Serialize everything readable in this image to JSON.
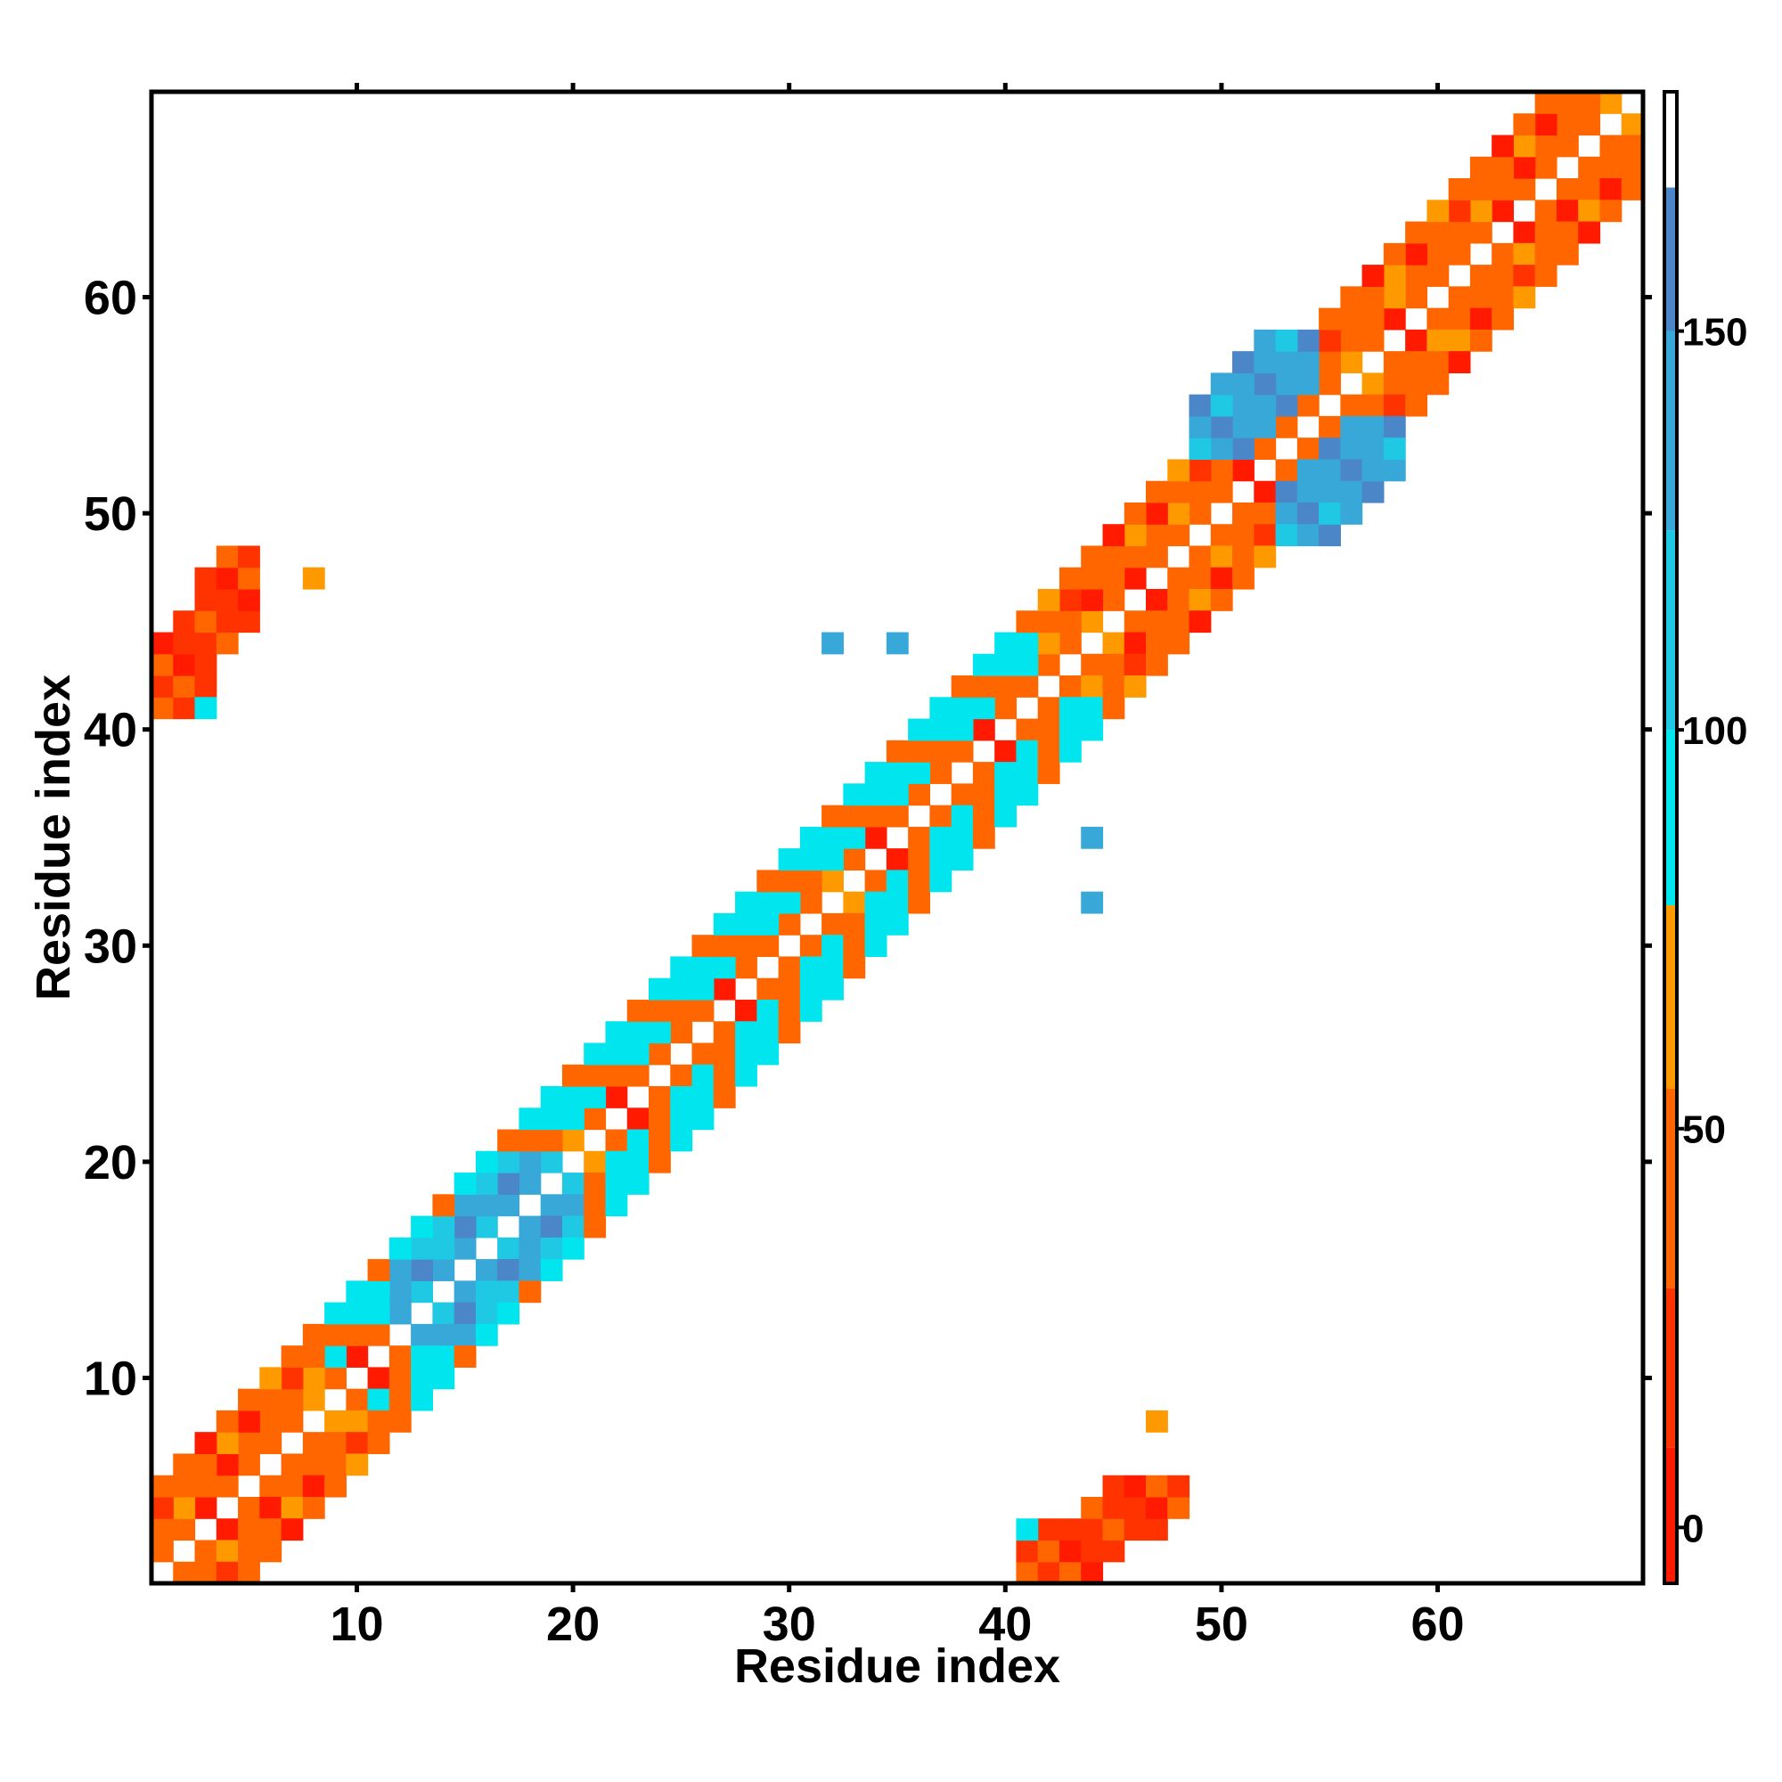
{
  "chart_data": {
    "type": "heatmap",
    "title": "",
    "xlabel": "Residue index",
    "ylabel": "Residue index",
    "xlim": [
      0.5,
      69.5
    ],
    "ylim": [
      0.5,
      69.5
    ],
    "x_ticks": [
      10,
      20,
      30,
      40,
      50,
      60
    ],
    "y_ticks": [
      10,
      20,
      30,
      40,
      50,
      60
    ],
    "x_tick_labels": [
      "10",
      "20",
      "30",
      "40",
      "50",
      "60"
    ],
    "y_tick_labels": [
      "10",
      "20",
      "30",
      "40",
      "50",
      "60"
    ],
    "grid": false,
    "legend": "colorbar right",
    "colorbar": {
      "range": [
        -7,
        180
      ],
      "ticks": [
        0,
        50,
        100,
        150
      ],
      "tick_labels": [
        "0",
        "50",
        "100",
        "150"
      ],
      "segments": [
        {
          "from": -7,
          "to": 10,
          "color": "#ff1a00"
        },
        {
          "from": 10,
          "to": 30,
          "color": "#ff3300"
        },
        {
          "from": 30,
          "to": 55,
          "color": "#ff6600"
        },
        {
          "from": 55,
          "to": 78,
          "color": "#ff9900"
        },
        {
          "from": 78,
          "to": 100,
          "color": "#00e5ee"
        },
        {
          "from": 100,
          "to": 125,
          "color": "#1fc8e3"
        },
        {
          "from": 125,
          "to": 150,
          "color": "#38a8d8"
        },
        {
          "from": 150,
          "to": 168,
          "color": "#4a86c8"
        },
        {
          "from": 168,
          "to": 180,
          "color": "#ffffff"
        }
      ]
    },
    "diagonal_bands": [
      {
        "offset": 1,
        "i_min": 1,
        "i_max": 68,
        "pattern": [
          40,
          35,
          5,
          45,
          48,
          40,
          45,
          60,
          35,
          5,
          40,
          45
        ]
      },
      {
        "offset": 2,
        "i_min": 1,
        "i_max": 67,
        "pattern": [
          45,
          60,
          40,
          5,
          35,
          45,
          40,
          60,
          45,
          35
        ]
      },
      {
        "offset": 3,
        "i_min": 1,
        "i_max": 66,
        "pattern": [
          20,
          45,
          40,
          60,
          5,
          45
        ]
      },
      {
        "offset": 4,
        "i_min": 1,
        "i_max": 65,
        "pattern": [
          45,
          40,
          5,
          45,
          35,
          60
        ]
      }
    ],
    "helix_regions": [
      {
        "i_min": 9,
        "i_max": 41,
        "max_offset": 4,
        "value": 95
      },
      {
        "i_min": 9,
        "i_max": 41,
        "max_offset": 3,
        "value": 45
      }
    ],
    "sheet_patches": [
      {
        "x": [
          1,
          5
        ],
        "y": [
          41,
          48
        ],
        "value": 20
      },
      {
        "x": [
          41,
          48
        ],
        "y": [
          1,
          5
        ],
        "value": 20
      },
      {
        "x": [
          13,
          19
        ],
        "y": [
          12,
          20
        ],
        "value": 130
      },
      {
        "x": [
          12,
          20
        ],
        "y": [
          13,
          19
        ],
        "value": 130
      },
      {
        "x": [
          49,
          54
        ],
        "y": [
          53,
          58
        ],
        "value": 135
      },
      {
        "x": [
          53,
          58
        ],
        "y": [
          49,
          54
        ],
        "value": 135
      }
    ],
    "isolated_cells": [
      {
        "x": 32,
        "y": 44,
        "value": 135
      },
      {
        "x": 35,
        "y": 44,
        "value": 135
      },
      {
        "x": 44,
        "y": 32,
        "value": 135
      },
      {
        "x": 44,
        "y": 35,
        "value": 135
      },
      {
        "x": 3,
        "y": 41,
        "value": 95
      },
      {
        "x": 41,
        "y": 3,
        "value": 95
      },
      {
        "x": 1,
        "y": 41,
        "value": 40
      },
      {
        "x": 41,
        "y": 1,
        "value": 40
      },
      {
        "x": 8,
        "y": 47,
        "value": 60
      },
      {
        "x": 47,
        "y": 8,
        "value": 60
      }
    ]
  }
}
